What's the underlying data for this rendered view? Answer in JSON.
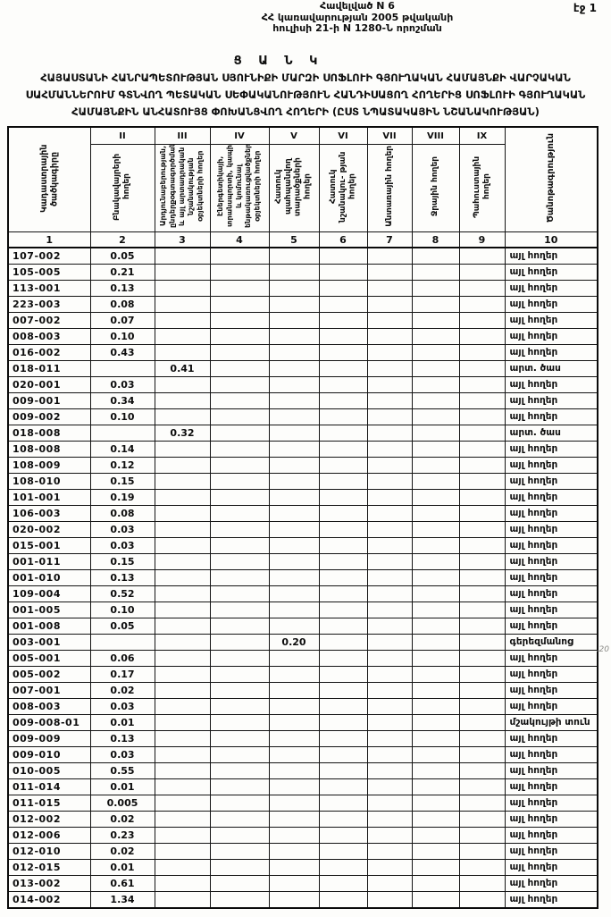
{
  "page": {
    "page_number_label": "էջ 1",
    "header_lines": [
      "Հավելված N 6",
      "ՀՀ կառավարության 2005 թվականի",
      "հուլիսի 21-ի N 1280-Ն որոշման"
    ],
    "doc_type": "Ց Ա Ն Կ",
    "title": "ՀԱՅԱՍՏԱՆԻ ՀԱՆՐԱՊԵՏՈՒԹՅԱՆ ՍՅՈՒՆԻՔԻ ՄԱՐԶԻ ՍՈՖԼՈՒԻ ԳՅՈՒՂԱԿԱՆ ՀԱՄԱՅՆՔԻ ՎԱՐՉԱԿԱՆ ՍԱՀՄԱՆՆԵՐՈՒՄ ԳՏՆՎՈՂ ՊԵՏԱԿԱՆ ՍԵՓԱԿԱՆՈՒԹՅՈՒՆ ՀԱՆԴԻՍԱՑՈՂ ՀՈՂԵՐԻՑ ՍՈՖԼՈՒԻ ԳՅՈՒՂԱԿԱՆ ՀԱՄԱՅՆՔԻՆ ԱՆՀԱՏՈՒՅՑ ՓՈԽԱՆՑՎՈՂ ՀՈՂԵՐԻ (ԸՍՏ ՆՊԱՏԱԿԱՅԻՆ ՆՇԱՆԱԿՈՒԹՅԱՆ)",
    "margin_note": "․20"
  },
  "table": {
    "roman_numerals": [
      "II",
      "III",
      "IV",
      "V",
      "VI",
      "VII",
      "VIII",
      "IX"
    ],
    "column_numbers": [
      "1",
      "2",
      "3",
      "4",
      "5",
      "6",
      "7",
      "8",
      "9",
      "10"
    ],
    "headers": {
      "col1": "Կադաստրային ծածկագիրը",
      "col2": "Բնակավայրերի հողեր",
      "col3": "Արդյունաբերության, ընդերքօգտագործման և այլ արտադրական նշանակության օբյեկտների հողեր",
      "col4": "Էներգետիկայի, տրանսպորտի, կապի և կոմունալ ենթակառուցվածքների օբյեկտների հողեր",
      "col5": "Հատուկ պահպանվող տարածքների հողեր",
      "col6": "Հատուկ նշանակու- թյան հողեր",
      "col7": "Անտառային հողեր",
      "col8": "Ջրային հողեր",
      "col9": "Պահուստային հողեր",
      "col10": "Ծանոթագրություն"
    },
    "rows": [
      [
        "107-002",
        "0.05",
        "",
        "",
        "",
        "",
        "",
        "",
        "",
        "այլ հողեր"
      ],
      [
        "105-005",
        "0.21",
        "",
        "",
        "",
        "",
        "",
        "",
        "",
        "այլ հողեր"
      ],
      [
        "113-001",
        "0.13",
        "",
        "",
        "",
        "",
        "",
        "",
        "",
        "այլ հողեր"
      ],
      [
        "223-003",
        "0.08",
        "",
        "",
        "",
        "",
        "",
        "",
        "",
        "այլ հողեր"
      ],
      [
        "007-002",
        "0.07",
        "",
        "",
        "",
        "",
        "",
        "",
        "",
        "այլ հողեր"
      ],
      [
        "008-003",
        "0.10",
        "",
        "",
        "",
        "",
        "",
        "",
        "",
        "այլ հողեր"
      ],
      [
        "016-002",
        "0.43",
        "",
        "",
        "",
        "",
        "",
        "",
        "",
        "այլ հողեր"
      ],
      [
        "018-011",
        "",
        "0.41",
        "",
        "",
        "",
        "",
        "",
        "",
        "արտ. ծաս"
      ],
      [
        "020-001",
        "0.03",
        "",
        "",
        "",
        "",
        "",
        "",
        "",
        "այլ հողեր"
      ],
      [
        "009-001",
        "0.34",
        "",
        "",
        "",
        "",
        "",
        "",
        "",
        "այլ հողեր"
      ],
      [
        "009-002",
        "0.10",
        "",
        "",
        "",
        "",
        "",
        "",
        "",
        "այլ հողեր"
      ],
      [
        "018-008",
        "",
        "0.32",
        "",
        "",
        "",
        "",
        "",
        "",
        "արտ. ծաս"
      ],
      [
        "108-008",
        "0.14",
        "",
        "",
        "",
        "",
        "",
        "",
        "",
        "այլ հողեր"
      ],
      [
        "108-009",
        "0.12",
        "",
        "",
        "",
        "",
        "",
        "",
        "",
        "այլ հողեր"
      ],
      [
        "108-010",
        "0.15",
        "",
        "",
        "",
        "",
        "",
        "",
        "",
        "այլ հողեր"
      ],
      [
        "101-001",
        "0.19",
        "",
        "",
        "",
        "",
        "",
        "",
        "",
        "այլ հողեր"
      ],
      [
        "106-003",
        "0.08",
        "",
        "",
        "",
        "",
        "",
        "",
        "",
        "այլ հողեր"
      ],
      [
        "020-002",
        "0.03",
        "",
        "",
        "",
        "",
        "",
        "",
        "",
        "այլ հողեր"
      ],
      [
        "015-001",
        "0.03",
        "",
        "",
        "",
        "",
        "",
        "",
        "",
        "այլ հողեր"
      ],
      [
        "001-011",
        "0.15",
        "",
        "",
        "",
        "",
        "",
        "",
        "",
        "այլ հողեր"
      ],
      [
        "001-010",
        "0.13",
        "",
        "",
        "",
        "",
        "",
        "",
        "",
        "այլ հողեր"
      ],
      [
        "109-004",
        "0.52",
        "",
        "",
        "",
        "",
        "",
        "",
        "",
        "այլ հողեր"
      ],
      [
        "001-005",
        "0.10",
        "",
        "",
        "",
        "",
        "",
        "",
        "",
        "այլ հողեր"
      ],
      [
        "001-008",
        "0.05",
        "",
        "",
        "",
        "",
        "",
        "",
        "",
        "այլ հողեր"
      ],
      [
        "003-001",
        "",
        "",
        "",
        "0.20",
        "",
        "",
        "",
        "",
        "գերեզմանոց"
      ],
      [
        "005-001",
        "0.06",
        "",
        "",
        "",
        "",
        "",
        "",
        "",
        "այլ հողեր"
      ],
      [
        "005-002",
        "0.17",
        "",
        "",
        "",
        "",
        "",
        "",
        "",
        "այլ հողեր"
      ],
      [
        "007-001",
        "0.02",
        "",
        "",
        "",
        "",
        "",
        "",
        "",
        "այլ հողեր"
      ],
      [
        "008-003",
        "0.03",
        "",
        "",
        "",
        "",
        "",
        "",
        "",
        "այլ հողեր"
      ],
      [
        "009-008-01",
        "0.01",
        "",
        "",
        "",
        "",
        "",
        "",
        "",
        "մշակույթի տուն"
      ],
      [
        "009-009",
        "0.13",
        "",
        "",
        "",
        "",
        "",
        "",
        "",
        "այլ հողեր"
      ],
      [
        "009-010",
        "0.03",
        "",
        "",
        "",
        "",
        "",
        "",
        "",
        "այլ հողեր"
      ],
      [
        "010-005",
        "0.55",
        "",
        "",
        "",
        "",
        "",
        "",
        "",
        "այլ հողեր"
      ],
      [
        "011-014",
        "0.01",
        "",
        "",
        "",
        "",
        "",
        "",
        "",
        "այլ հողեր"
      ],
      [
        "011-015",
        "0.005",
        "",
        "",
        "",
        "",
        "",
        "",
        "",
        "այլ հողեր"
      ],
      [
        "012-002",
        "0.02",
        "",
        "",
        "",
        "",
        "",
        "",
        "",
        "այլ հողեր"
      ],
      [
        "012-006",
        "0.23",
        "",
        "",
        "",
        "",
        "",
        "",
        "",
        "այլ հողեր"
      ],
      [
        "012-010",
        "0.02",
        "",
        "",
        "",
        "",
        "",
        "",
        "",
        "այլ հողեր"
      ],
      [
        "012-015",
        "0.01",
        "",
        "",
        "",
        "",
        "",
        "",
        "",
        "այլ հողեր"
      ],
      [
        "013-002",
        "0.61",
        "",
        "",
        "",
        "",
        "",
        "",
        "",
        "այլ հողեր"
      ],
      [
        "014-002",
        "1.34",
        "",
        "",
        "",
        "",
        "",
        "",
        "",
        "այլ հողեր"
      ]
    ]
  }
}
